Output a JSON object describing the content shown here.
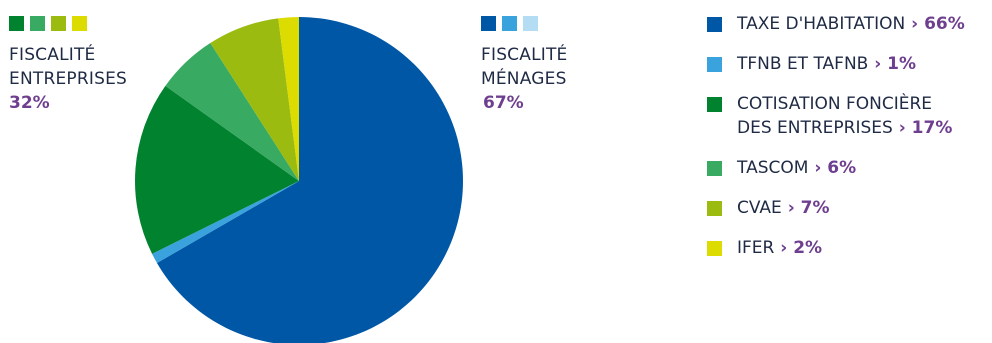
{
  "chart_data": {
    "type": "pie",
    "slices": [
      {
        "label_lines": [
          "TAXE D'HABITATION"
        ],
        "value": 66,
        "value_label": "66%",
        "color": "#0057a5"
      },
      {
        "label_lines": [
          "TFNB ET TAFNB"
        ],
        "value": 1,
        "value_label": "1%",
        "color": "#3aa3dd"
      },
      {
        "label_lines": [
          "COTISATION FONCIÈRE",
          "DES ENTREPRISES"
        ],
        "value": 17,
        "value_label": "17%",
        "color": "#00822f"
      },
      {
        "label_lines": [
          "TASCOM"
        ],
        "value": 6,
        "value_label": "6%",
        "color": "#38aa61"
      },
      {
        "label_lines": [
          "CVAE"
        ],
        "value": 7,
        "value_label": "7%",
        "color": "#9bbb10"
      },
      {
        "label_lines": [
          "IFER"
        ],
        "value": 2,
        "value_label": "2%",
        "color": "#dcdc00"
      }
    ],
    "groups": {
      "entreprises": {
        "name_lines": [
          "FISCALITÉ",
          "ENTREPRISES"
        ],
        "pct": "32%",
        "swatches": [
          "#00822f",
          "#38aa61",
          "#9bbb10",
          "#dcdc00"
        ]
      },
      "menages": {
        "name_lines": [
          "FISCALITÉ",
          "MÉNAGES"
        ],
        "pct": "67%",
        "swatches": [
          "#0057a5",
          "#3aa3dd",
          "#b4dcf2"
        ]
      }
    },
    "legend_placement": "right",
    "accent_color": "#6f3f8f"
  }
}
